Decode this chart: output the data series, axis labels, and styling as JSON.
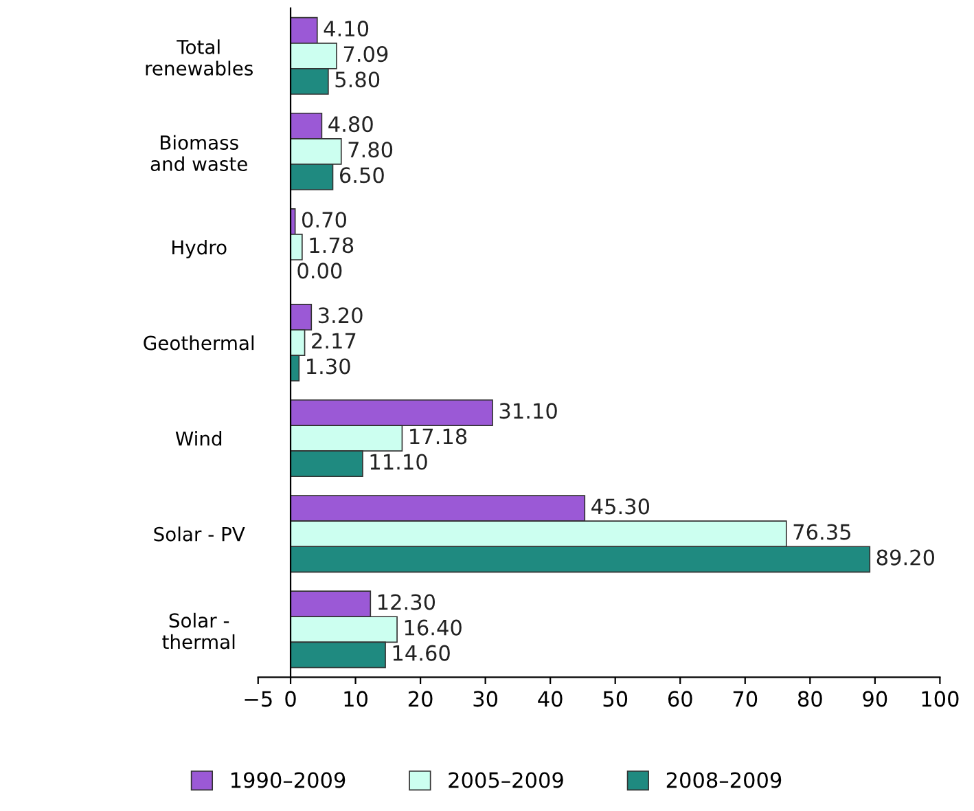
{
  "chart_data": {
    "type": "bar",
    "orientation": "horizontal",
    "categories": [
      "Total\nrenewables",
      "Biomass\nand waste",
      "Hydro",
      "Geothermal",
      "Wind",
      "Solar - PV",
      "Solar -\nthermal"
    ],
    "series": [
      {
        "name": "1990–2009",
        "color": "#9b59d6",
        "values": [
          4.1,
          4.8,
          0.7,
          3.2,
          31.1,
          45.3,
          12.3
        ],
        "value_labels": [
          "4.10",
          "4.80",
          "0.70",
          "3.20",
          "31.10",
          "45.30",
          "12.30"
        ]
      },
      {
        "name": "2005–2009",
        "color": "#ccfff0",
        "values": [
          7.09,
          7.8,
          1.78,
          2.17,
          17.18,
          76.35,
          16.4
        ],
        "value_labels": [
          "7.09",
          "7.80",
          "1.78",
          "2.17",
          "17.18",
          "76.35",
          "16.40"
        ]
      },
      {
        "name": "2008–2009",
        "color": "#1f8a80",
        "values": [
          5.8,
          6.5,
          0.0,
          1.3,
          11.1,
          89.2,
          14.6
        ],
        "value_labels": [
          "5.80",
          "6.50",
          "0.00",
          "1.30",
          "11.10",
          "89.20",
          "14.60"
        ]
      }
    ],
    "xlim": [
      -5,
      100
    ],
    "xticks": [
      {
        "value": -5,
        "label": "−5"
      },
      0,
      10,
      20,
      30,
      40,
      50,
      60,
      70,
      80,
      90,
      100
    ],
    "legend": "bottom",
    "grid": false
  }
}
